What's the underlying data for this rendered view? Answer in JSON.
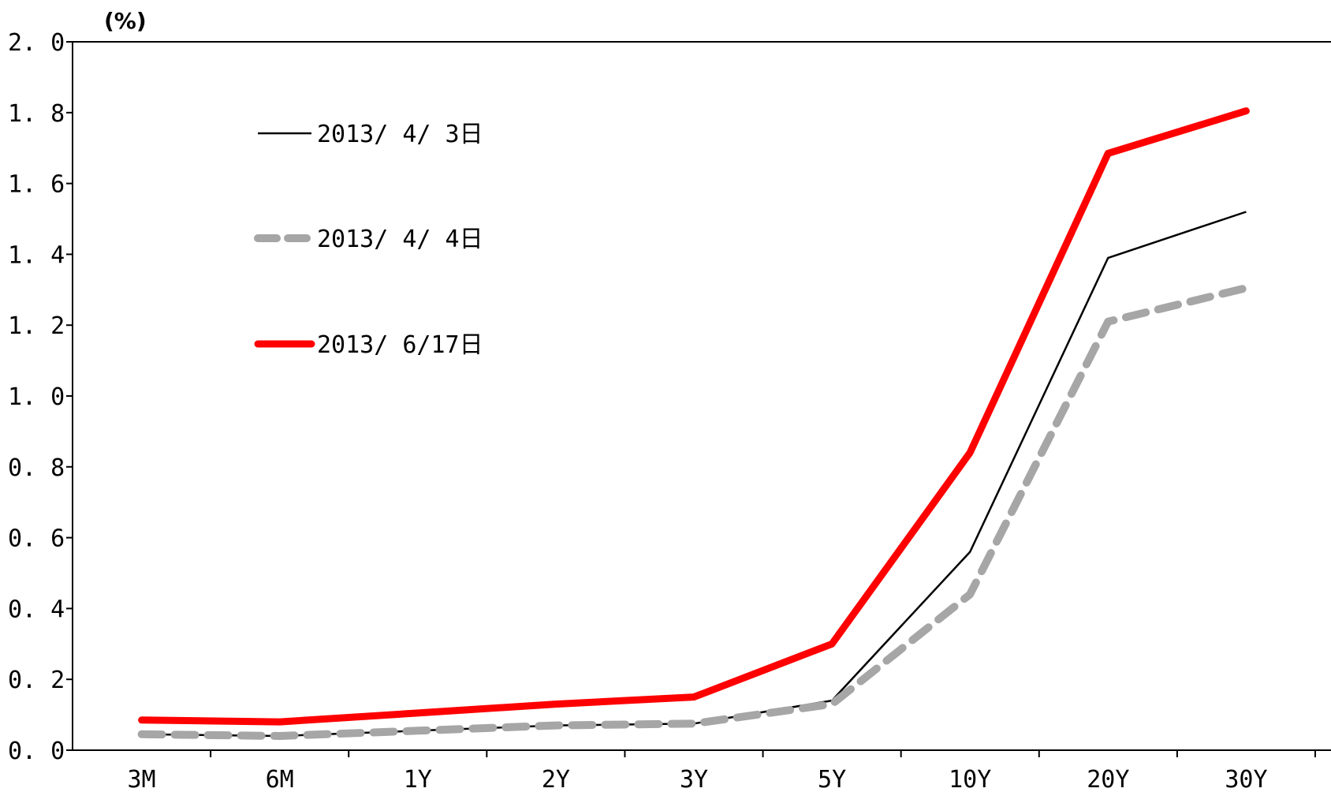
{
  "chart_data": {
    "type": "line",
    "unit_label": "(%)",
    "categories": [
      "3M",
      "6M",
      "1Y",
      "2Y",
      "3Y",
      "5Y",
      "10Y",
      "20Y",
      "30Y"
    ],
    "ylim": [
      0.0,
      2.0
    ],
    "y_ticks": [
      "0.0",
      "0.2",
      "0.4",
      "0.6",
      "0.8",
      "1.0",
      "1.2",
      "1.4",
      "1.6",
      "1.8",
      "2.0"
    ],
    "legend_position": "upper-left",
    "series": [
      {
        "name": "2013/ 4/ 3日",
        "color": "#000000",
        "style": "solid-thin",
        "values": [
          0.045,
          0.04,
          0.055,
          0.07,
          0.075,
          0.14,
          0.56,
          1.39,
          1.52
        ]
      },
      {
        "name": "2013/ 4/ 4日",
        "color": "#a6a6a6",
        "style": "dashed-thick",
        "values": [
          0.045,
          0.04,
          0.055,
          0.07,
          0.075,
          0.13,
          0.44,
          1.21,
          1.305
        ]
      },
      {
        "name": "2013/ 6/17日",
        "color": "#ff0000",
        "style": "solid-thick",
        "values": [
          0.085,
          0.08,
          0.105,
          0.13,
          0.15,
          0.3,
          0.84,
          1.685,
          1.805
        ]
      }
    ]
  }
}
